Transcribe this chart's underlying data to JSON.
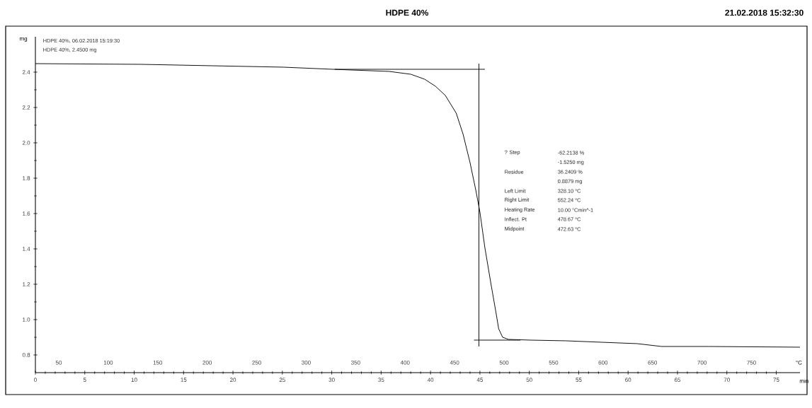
{
  "chart_data": {
    "type": "line",
    "title": "HDPE 40%",
    "subtitle": "21.02.2018 15:32:30",
    "xlabel": "min",
    "x2label": "°C",
    "ylabel": "mg",
    "xlim": [
      0,
      77.4
    ],
    "xticks": [
      0,
      5,
      10,
      15,
      20,
      25,
      30,
      35,
      40,
      45,
      50,
      55,
      60,
      65,
      70,
      75
    ],
    "x2lim": [
      26.4,
      799
    ],
    "x2ticks": [
      50,
      100,
      150,
      200,
      250,
      300,
      350,
      400,
      450,
      500,
      550,
      600,
      650,
      700,
      750
    ],
    "ylim": [
      0.7,
      2.6
    ],
    "yticks": [
      0.8,
      {
        "value": 1.0,
        "label": "1.0"
      },
      1.2,
      1.4,
      1.6,
      1.8,
      {
        "value": 2.0,
        "label": "2.0"
      },
      2.2,
      2.4
    ],
    "series": [
      {
        "color": "#000000",
        "x": [
          0,
          10.7,
          17.9,
          25.1,
          30.1,
          35.8,
          38.0,
          39.4,
          40.5,
          41.5,
          42.6,
          43.3,
          44.0,
          44.6,
          45.0,
          45.5,
          46.1,
          46.6,
          46.9,
          47.3,
          47.9,
          50.1,
          53.7,
          57.3,
          60.9,
          63.4,
          68.1,
          77.4
        ],
        "values": [
          2.448,
          2.444,
          2.436,
          2.428,
          2.416,
          2.404,
          2.388,
          2.36,
          2.32,
          2.268,
          2.168,
          2.048,
          1.888,
          1.728,
          1.608,
          1.408,
          1.208,
          1.048,
          0.948,
          0.9,
          0.888,
          0.884,
          0.88,
          0.872,
          0.864,
          0.848,
          0.848,
          0.844
        ]
      },
      {
        "type": "line",
        "color": "#000000",
        "x": [
          30.3,
          45.5
        ],
        "values": [
          2.416,
          2.416
        ]
      },
      {
        "type": "line",
        "color": "#000000",
        "x": [
          44.4,
          49.1
        ],
        "values": [
          0.884,
          0.884
        ]
      },
      {
        "type": "line",
        "color": "#000000",
        "x": [
          44.9,
          44.9
        ],
        "values": [
          2.448,
          0.848
        ]
      }
    ],
    "annotations": [
      "HDPE 40%, 06.02.2018 15:19:30",
      "HDPE 40%, 2.4500 mg",
      "? Step",
      "-62.2138 %",
      "-1.5250 mg",
      "Residue",
      "36.2409 %",
      "0.8879 mg",
      "Left Limit",
      "328.10 °C",
      "Right Limit",
      "552.24 °C",
      "Heating Rate",
      "10.00 °Cmin^-1",
      "Inflect. Pt",
      "478.67 °C",
      "Midpoint",
      "472.63 °C"
    ]
  }
}
